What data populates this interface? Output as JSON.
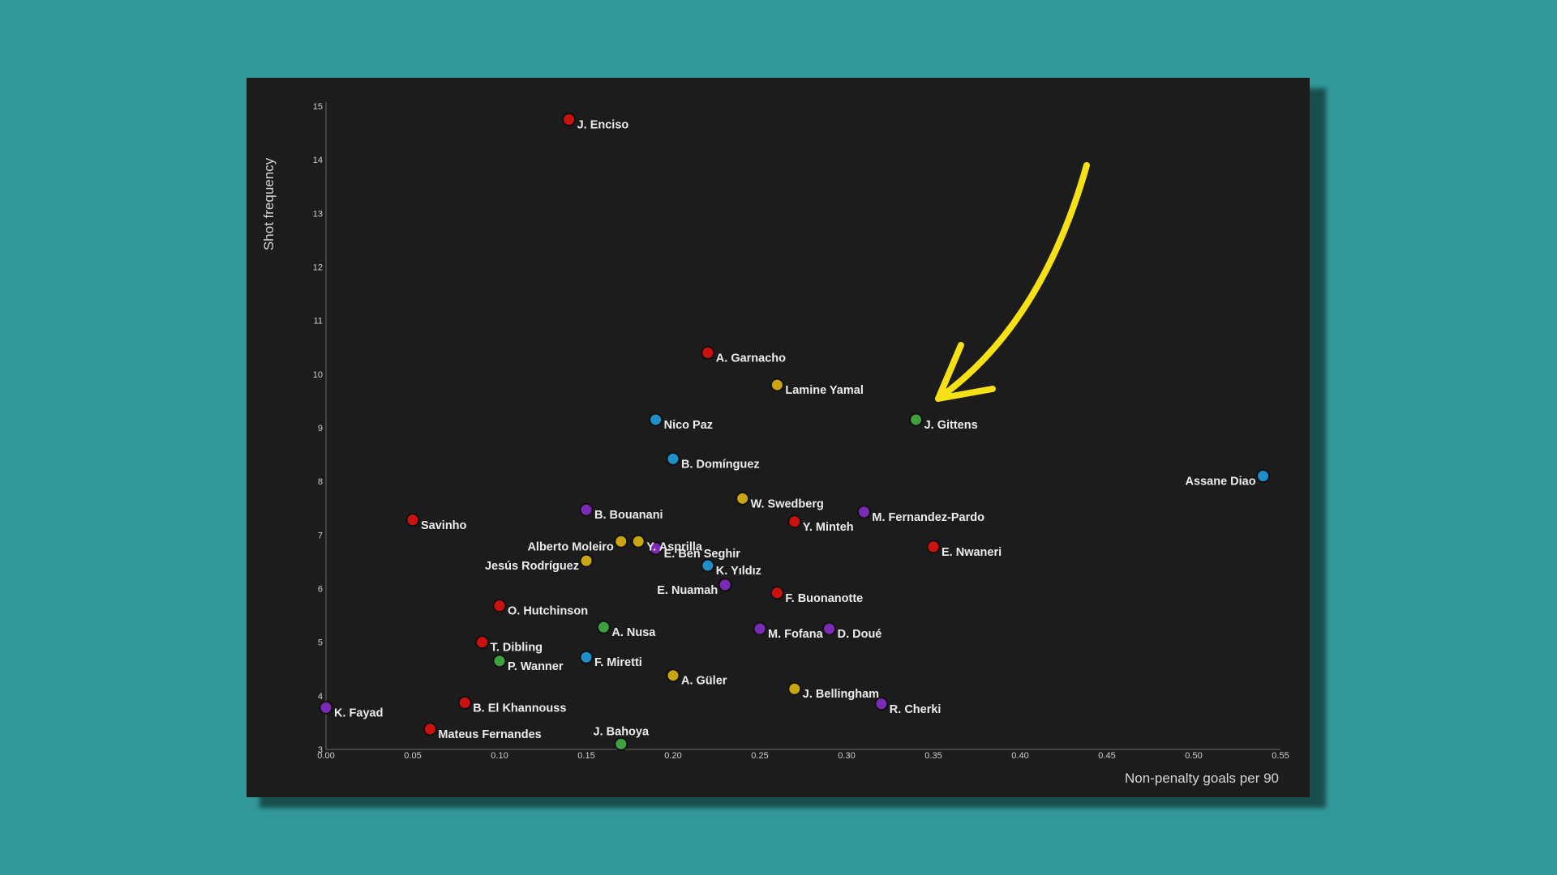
{
  "chart_data": {
    "type": "scatter",
    "xlabel": "Non-penalty goals per 90",
    "ylabel": "Shot frequency",
    "xlim": [
      0,
      0.55
    ],
    "ylim": [
      3,
      15
    ],
    "x_ticks": [
      "0.00",
      "0.05",
      "0.10",
      "0.15",
      "0.20",
      "0.25",
      "0.30",
      "0.35",
      "0.40",
      "0.45",
      "0.50",
      "0.55"
    ],
    "y_ticks": [
      "3",
      "4",
      "5",
      "6",
      "7",
      "8",
      "9",
      "10",
      "11",
      "12",
      "13",
      "14",
      "15"
    ],
    "grid": false,
    "legend": "none",
    "colors": {
      "red": "#cc1111",
      "blue": "#1e8fc8",
      "purple": "#7a2ab5",
      "yellow": "#c9a513",
      "green": "#3ea03e"
    },
    "annotation": {
      "type": "arrow",
      "color": "#f5e116",
      "points_to": "J. Gittens"
    },
    "points": [
      {
        "name": "J. Enciso",
        "x": 0.14,
        "y": 14.75,
        "color": "red",
        "label_pos": "right"
      },
      {
        "name": "A. Garnacho",
        "x": 0.22,
        "y": 10.4,
        "color": "red",
        "label_pos": "right"
      },
      {
        "name": "Lamine Yamal",
        "x": 0.26,
        "y": 9.8,
        "color": "yellow",
        "label_pos": "right"
      },
      {
        "name": "Nico Paz",
        "x": 0.19,
        "y": 9.15,
        "color": "blue",
        "label_pos": "right"
      },
      {
        "name": "J. Gittens",
        "x": 0.34,
        "y": 9.15,
        "color": "green",
        "label_pos": "right"
      },
      {
        "name": "B. Domínguez",
        "x": 0.2,
        "y": 8.42,
        "color": "blue",
        "label_pos": "right"
      },
      {
        "name": "Assane Diao",
        "x": 0.54,
        "y": 8.1,
        "color": "blue",
        "label_pos": "left"
      },
      {
        "name": "W. Swedberg",
        "x": 0.24,
        "y": 7.68,
        "color": "yellow",
        "label_pos": "right"
      },
      {
        "name": "B. Bouanani",
        "x": 0.15,
        "y": 7.47,
        "color": "purple",
        "label_pos": "right"
      },
      {
        "name": "M. Fernandez-Pardo",
        "x": 0.31,
        "y": 7.43,
        "color": "purple",
        "label_pos": "right"
      },
      {
        "name": "Savinho",
        "x": 0.05,
        "y": 7.28,
        "color": "red",
        "label_pos": "right"
      },
      {
        "name": "Y. Minteh",
        "x": 0.27,
        "y": 7.25,
        "color": "red",
        "label_pos": "right"
      },
      {
        "name": "Alberto Moleiro",
        "x": 0.17,
        "y": 6.88,
        "color": "yellow",
        "label_pos": "left"
      },
      {
        "name": "Y. Asprilla",
        "x": 0.18,
        "y": 6.88,
        "color": "yellow",
        "label_pos": "right"
      },
      {
        "name": "E. Ben Seghir",
        "x": 0.19,
        "y": 6.75,
        "color": "purple",
        "label_pos": "right"
      },
      {
        "name": "E. Nwaneri",
        "x": 0.35,
        "y": 6.78,
        "color": "red",
        "label_pos": "right"
      },
      {
        "name": "Jesús Rodríguez",
        "x": 0.15,
        "y": 6.52,
        "color": "yellow",
        "label_pos": "left"
      },
      {
        "name": "K. Yıldız",
        "x": 0.22,
        "y": 6.43,
        "color": "blue",
        "label_pos": "right"
      },
      {
        "name": "E. Nuamah",
        "x": 0.23,
        "y": 6.07,
        "color": "purple",
        "label_pos": "left"
      },
      {
        "name": "F. Buonanotte",
        "x": 0.26,
        "y": 5.92,
        "color": "red",
        "label_pos": "right"
      },
      {
        "name": "O. Hutchinson",
        "x": 0.1,
        "y": 5.68,
        "color": "red",
        "label_pos": "right"
      },
      {
        "name": "A. Nusa",
        "x": 0.16,
        "y": 5.28,
        "color": "green",
        "label_pos": "right"
      },
      {
        "name": "M. Fofana",
        "x": 0.25,
        "y": 5.25,
        "color": "purple",
        "label_pos": "right"
      },
      {
        "name": "D. Doué",
        "x": 0.29,
        "y": 5.25,
        "color": "purple",
        "label_pos": "right"
      },
      {
        "name": "T. Dibling",
        "x": 0.09,
        "y": 5.0,
        "color": "red",
        "label_pos": "right"
      },
      {
        "name": "F. Miretti",
        "x": 0.15,
        "y": 4.72,
        "color": "blue",
        "label_pos": "right"
      },
      {
        "name": "P. Wanner",
        "x": 0.1,
        "y": 4.65,
        "color": "green",
        "label_pos": "right"
      },
      {
        "name": "A. Güler",
        "x": 0.2,
        "y": 4.38,
        "color": "yellow",
        "label_pos": "right"
      },
      {
        "name": "J. Bellingham",
        "x": 0.27,
        "y": 4.13,
        "color": "yellow",
        "label_pos": "right"
      },
      {
        "name": "B. El Khannouss",
        "x": 0.08,
        "y": 3.87,
        "color": "red",
        "label_pos": "right"
      },
      {
        "name": "R. Cherki",
        "x": 0.32,
        "y": 3.85,
        "color": "purple",
        "label_pos": "right"
      },
      {
        "name": "K. Fayad",
        "x": 0.0,
        "y": 3.78,
        "color": "purple",
        "label_pos": "right"
      },
      {
        "name": "Mateus Fernandes",
        "x": 0.06,
        "y": 3.38,
        "color": "red",
        "label_pos": "right"
      },
      {
        "name": "J. Bahoya",
        "x": 0.17,
        "y": 3.1,
        "color": "green",
        "label_pos": "above"
      }
    ]
  }
}
